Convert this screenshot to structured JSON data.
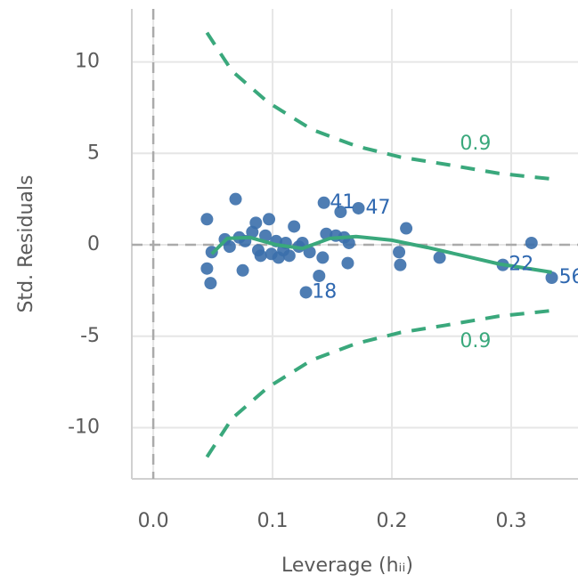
{
  "chart_data": {
    "type": "scatter",
    "xlabel": "Leverage (hᵢᵢ)",
    "ylabel": "Std. Residuals",
    "xlim": [
      -0.018,
      0.356
    ],
    "ylim": [
      -12.8,
      12.9
    ],
    "xticks": [
      {
        "value": 0,
        "label": "0.0"
      },
      0.1,
      0.2,
      0.3
    ],
    "yticks": [
      -10,
      -5,
      0,
      5,
      10
    ],
    "grid": true,
    "hline": 0,
    "vline": 0,
    "series": [
      {
        "color": "#3b6fab",
        "x": [
          0.045,
          0.045,
          0.048,
          0.049,
          0.06,
          0.064,
          0.069,
          0.072,
          0.075,
          0.077,
          0.083,
          0.086,
          0.088,
          0.09,
          0.094,
          0.097,
          0.099,
          0.103,
          0.105,
          0.109,
          0.111,
          0.114,
          0.118,
          0.122,
          0.125,
          0.128,
          0.131,
          0.139,
          0.142,
          0.143,
          0.145,
          0.153,
          0.157,
          0.16,
          0.163,
          0.164,
          0.172,
          0.206,
          0.207,
          0.212,
          0.24,
          0.293,
          0.317,
          0.334
        ],
        "values": [
          1.4,
          -1.3,
          -2.1,
          -0.4,
          0.3,
          -0.1,
          2.5,
          0.4,
          -1.4,
          0.2,
          0.7,
          1.2,
          -0.3,
          -0.6,
          0.5,
          1.4,
          -0.5,
          0.2,
          -0.7,
          -0.3,
          0.1,
          -0.6,
          1.0,
          -0.1,
          0.1,
          -2.6,
          -0.4,
          -1.7,
          -0.7,
          2.3,
          0.6,
          0.5,
          1.8,
          0.4,
          -1.0,
          0.1,
          2.0,
          -0.4,
          -1.1,
          0.9,
          -0.7,
          -1.1,
          0.1,
          -1.8
        ]
      },
      {
        "kind": "line",
        "color": "#3aa87c",
        "x": [
          0.049,
          0.062,
          0.081,
          0.103,
          0.125,
          0.148,
          0.17,
          0.2,
          0.23,
          0.26,
          0.29,
          0.334
        ],
        "values": [
          -0.5,
          0.35,
          0.4,
          0,
          -0.2,
          0.35,
          0.45,
          0.25,
          -0.15,
          -0.6,
          -1.05,
          -1.5
        ]
      },
      {
        "kind": "dashed",
        "color": "#3aa87c",
        "x": [
          0.045,
          0.066,
          0.096,
          0.133,
          0.17,
          0.207,
          0.245,
          0.29,
          0.334
        ],
        "values": [
          11.6,
          9.5,
          7.8,
          6.3,
          5.4,
          4.8,
          4.4,
          3.9,
          3.6
        ]
      },
      {
        "kind": "dashed",
        "color": "#3aa87c",
        "x": [
          0.045,
          0.066,
          0.096,
          0.133,
          0.17,
          0.207,
          0.245,
          0.29,
          0.334
        ],
        "values": [
          -11.6,
          -9.5,
          -7.8,
          -6.3,
          -5.4,
          -4.8,
          -4.4,
          -3.9,
          -3.6
        ]
      }
    ],
    "annotations": [
      {
        "text": "0.9",
        "x": 0.257,
        "y": 5.5,
        "color": "#3aa87c"
      },
      {
        "text": "0.9",
        "x": 0.257,
        "y": -5.3,
        "color": "#3aa87c"
      },
      {
        "text": "41",
        "x": 0.148,
        "y": 2.3,
        "color": "#2f68b0"
      },
      {
        "text": "47",
        "x": 0.178,
        "y": 2.0,
        "color": "#2f68b0"
      },
      {
        "text": "18",
        "x": 0.133,
        "y": -2.6,
        "color": "#2f68b0"
      },
      {
        "text": "22",
        "x": 0.298,
        "y": -1.1,
        "color": "#2f68b0"
      },
      {
        "text": "56",
        "x": 0.34,
        "y": -1.8,
        "color": "#2f68b0"
      }
    ]
  }
}
